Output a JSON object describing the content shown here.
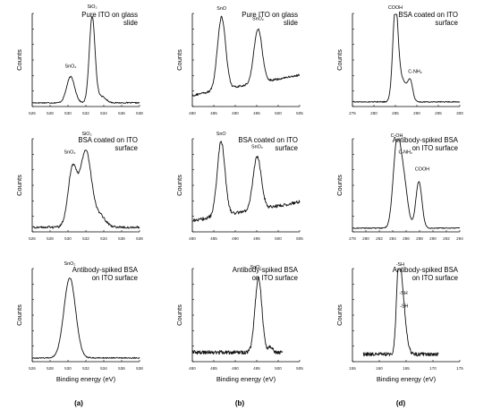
{
  "figure": {
    "column_labels": [
      "(a)",
      "(b)",
      "(d)"
    ],
    "xlabel": "Binding energy (eV)",
    "ylabel": "Counts"
  },
  "chart_data": [
    {
      "type": "line",
      "id": "a1",
      "col": 0,
      "row": 0,
      "title": "Pure ITO on glass slide",
      "xlabel": "",
      "ylabel": "Counts",
      "xlim": [
        526,
        538
      ],
      "xticks": [
        526,
        528,
        530,
        532,
        534,
        536,
        538
      ],
      "peaks": [
        {
          "x": 530.3,
          "h": 0.28,
          "w": 0.45
        },
        {
          "x": 532.7,
          "h": 0.92,
          "w": 0.32
        },
        {
          "x": 533.7,
          "h": 0.07,
          "w": 0.5
        }
      ],
      "baseline": 0.04,
      "noise": 0.006,
      "annotations": [
        {
          "text": "SnO₂",
          "x": 530.3,
          "level": 0.42
        },
        {
          "text": "SiO₂",
          "x": 532.7,
          "level": 1.06
        }
      ]
    },
    {
      "type": "line",
      "id": "b1",
      "col": 1,
      "row": 0,
      "title": "Pure ITO on glass slide",
      "xlabel": "",
      "ylabel": "Counts",
      "xlim": [
        480,
        505
      ],
      "xticks": [
        480,
        485,
        490,
        495,
        500,
        505
      ],
      "peaks": [
        {
          "x": 486.8,
          "h": 0.78,
          "w": 0.95
        },
        {
          "x": 495.3,
          "h": 0.58,
          "w": 0.95
        }
      ],
      "slope": 0.22,
      "baseline": 0.12,
      "noise": 0.012,
      "annotations": [
        {
          "text": "SnO",
          "x": 486.8,
          "level": 1.04
        },
        {
          "text": "SnO₂",
          "x": 495.3,
          "level": 0.93
        }
      ]
    },
    {
      "type": "line",
      "id": "c1",
      "col": 2,
      "row": 0,
      "title": "BSA coated on ITO surface",
      "xlabel": "",
      "ylabel": "Counts",
      "xlim": [
        275,
        300
      ],
      "xticks": [
        275,
        280,
        285,
        290,
        295,
        300
      ],
      "peaks": [
        {
          "x": 285.0,
          "h": 0.93,
          "w": 0.6
        },
        {
          "x": 286.4,
          "h": 0.25,
          "w": 1.2
        },
        {
          "x": 288.5,
          "h": 0.19,
          "w": 0.55
        }
      ],
      "baseline": 0.05,
      "noise": 0.006,
      "annotations": [
        {
          "text": "COOH",
          "x": 285.0,
          "level": 1.05
        },
        {
          "text": "C-NH₂",
          "x": 289.6,
          "level": 0.36
        }
      ]
    },
    {
      "type": "line",
      "id": "a2",
      "col": 0,
      "row": 1,
      "title": "BSA coated on ITO surface",
      "xlabel": "",
      "ylabel": "Counts",
      "xlim": [
        526,
        538
      ],
      "xticks": [
        526,
        528,
        530,
        532,
        534,
        536,
        538
      ],
      "peaks": [
        {
          "x": 530.5,
          "h": 0.62,
          "w": 0.5
        },
        {
          "x": 532.0,
          "h": 0.82,
          "w": 0.62
        },
        {
          "x": 533.6,
          "h": 0.12,
          "w": 0.6
        }
      ],
      "baseline": 0.05,
      "noise": 0.012,
      "annotations": [
        {
          "text": "SnO₂",
          "x": 530.2,
          "level": 0.84
        },
        {
          "text": "SiO₂",
          "x": 532.1,
          "level": 1.04
        }
      ]
    },
    {
      "type": "line",
      "id": "b2",
      "col": 1,
      "row": 1,
      "title": "BSA coated on ITO surface",
      "xlabel": "",
      "ylabel": "Counts",
      "xlim": [
        480,
        505
      ],
      "xticks": [
        480,
        485,
        490,
        495,
        500,
        505
      ],
      "peaks": [
        {
          "x": 486.7,
          "h": 0.8,
          "w": 0.9
        },
        {
          "x": 495.1,
          "h": 0.57,
          "w": 0.95
        }
      ],
      "slope": 0.2,
      "baseline": 0.12,
      "noise": 0.018,
      "annotations": [
        {
          "text": "SnO",
          "x": 486.7,
          "level": 1.04
        },
        {
          "text": "SnO₂",
          "x": 495.1,
          "level": 0.9
        }
      ]
    },
    {
      "type": "line",
      "id": "c2",
      "col": 2,
      "row": 1,
      "title": "Antibody-spiked BSA on ITO surface",
      "xlabel": "",
      "ylabel": "Counts",
      "xlim": [
        278,
        294
      ],
      "xticks": [
        278,
        280,
        282,
        284,
        286,
        288,
        290,
        292,
        294
      ],
      "peaks": [
        {
          "x": 284.6,
          "h": 0.85,
          "w": 0.55
        },
        {
          "x": 285.6,
          "h": 0.5,
          "w": 0.6
        },
        {
          "x": 287.9,
          "h": 0.5,
          "w": 0.45
        }
      ],
      "baseline": 0.04,
      "noise": 0.005,
      "annotations": [
        {
          "text": "C-OH",
          "x": 284.6,
          "level": 1.02
        },
        {
          "text": "C-NH₂",
          "x": 285.9,
          "level": 0.84
        },
        {
          "text": "COOH",
          "x": 288.4,
          "level": 0.66
        }
      ]
    },
    {
      "type": "line",
      "id": "a3",
      "col": 0,
      "row": 2,
      "title": "Antibody-spiked BSA on ITO surface",
      "xlabel": "Binding energy (eV)",
      "ylabel": "Counts",
      "xlim": [
        526,
        538
      ],
      "xticks": [
        526,
        528,
        530,
        532,
        534,
        536,
        538
      ],
      "peaks": [
        {
          "x": 530.2,
          "h": 0.86,
          "w": 0.65
        }
      ],
      "baseline": 0.04,
      "noise": 0.006,
      "annotations": [
        {
          "text": "SnO₂",
          "x": 530.2,
          "level": 1.04
        }
      ]
    },
    {
      "type": "line",
      "id": "b3",
      "col": 1,
      "row": 2,
      "title": "Antibody-spiked BSA on ITO surface",
      "xlabel": "Binding energy (eV)",
      "ylabel": "Counts",
      "xlim": [
        480,
        505
      ],
      "xticks": [
        480,
        485,
        490,
        495,
        500,
        505
      ],
      "xmax_data": 501,
      "peaks": [
        {
          "x": 495.4,
          "h": 0.8,
          "w": 0.8
        },
        {
          "x": 498.2,
          "h": 0.06,
          "w": 0.5
        }
      ],
      "baseline": 0.1,
      "noise": 0.02,
      "annotations": [
        {
          "text": "SnO₂",
          "x": 494.8,
          "level": 1.0
        }
      ]
    },
    {
      "type": "line",
      "id": "c3",
      "col": 2,
      "row": 2,
      "title": "Antibody-spiked BSA on ITO surface",
      "xlabel": "Binding energy (eV)",
      "ylabel": "Counts",
      "xlim": [
        155,
        175
      ],
      "xticks": [
        155,
        160,
        165,
        170,
        175
      ],
      "xmin_data": 157,
      "xmax_data": 171,
      "peaks": [
        {
          "x": 163.6,
          "h": 0.9,
          "w": 0.42
        },
        {
          "x": 164.3,
          "h": 0.45,
          "w": 0.45
        },
        {
          "x": 164.9,
          "h": 0.18,
          "w": 0.5
        }
      ],
      "baseline": 0.08,
      "noise": 0.02,
      "annotations": [
        {
          "text": "-SH",
          "x": 163.9,
          "level": 1.03
        },
        {
          "text": "-SH",
          "x": 164.5,
          "level": 0.72
        },
        {
          "text": "-SH",
          "x": 164.6,
          "level": 0.58
        }
      ]
    }
  ]
}
